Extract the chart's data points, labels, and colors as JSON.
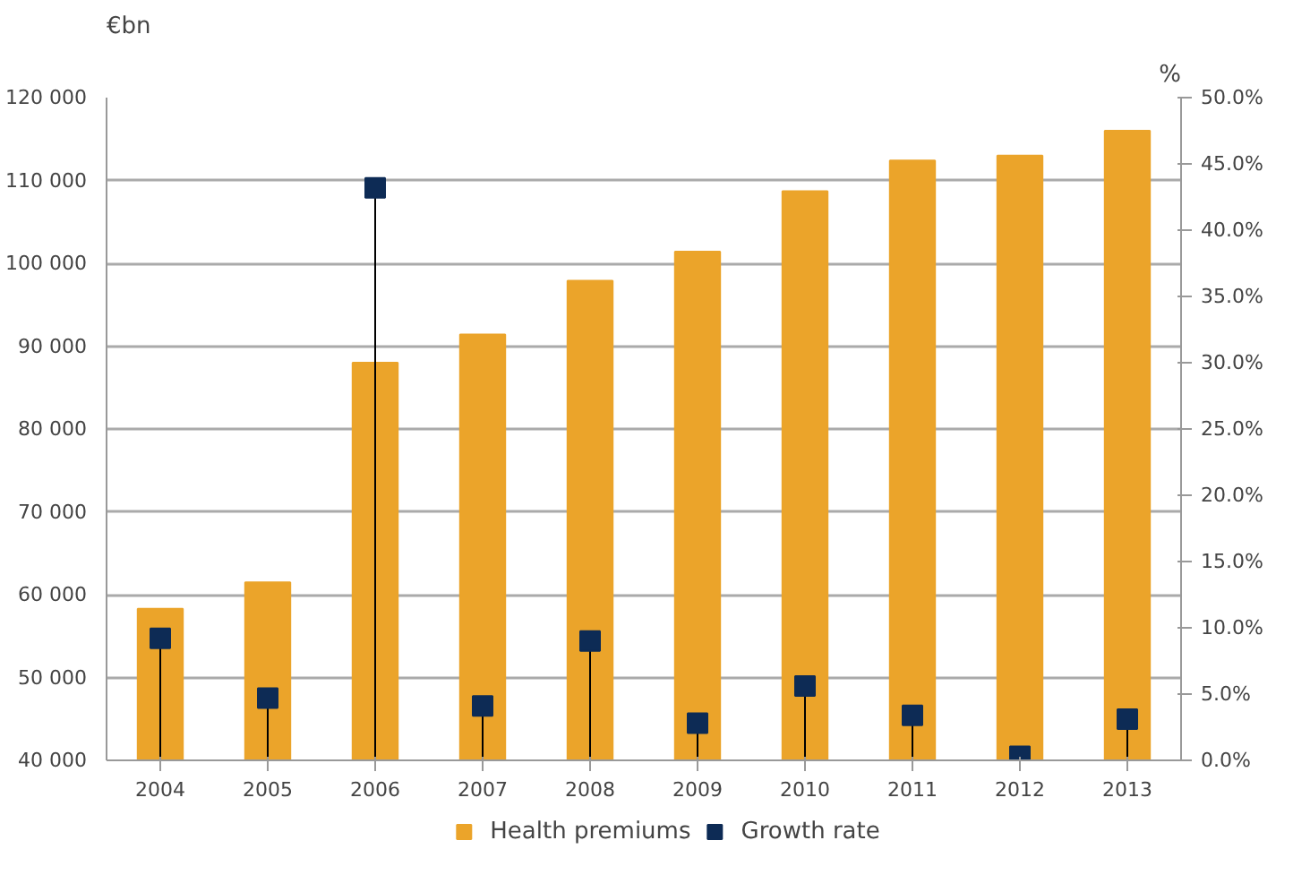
{
  "chart_data": {
    "type": "bar",
    "categories": [
      "2004",
      "2005",
      "2006",
      "2007",
      "2008",
      "2009",
      "2010",
      "2011",
      "2012",
      "2013"
    ],
    "ylabel": "€bn",
    "y2label": "%",
    "series": [
      {
        "name": "Health premiums",
        "color": "#eba42a",
        "values": [
          58300,
          61500,
          88000,
          91400,
          97900,
          101400,
          108700,
          112400,
          113000,
          116000
        ]
      },
      {
        "name": "Growth rate",
        "type": "lollipop",
        "axis": "y2",
        "color": "#0d2b55",
        "values": [
          9.2,
          4.7,
          43.2,
          4.1,
          9.0,
          2.8,
          5.6,
          3.4,
          0.3,
          3.1
        ]
      }
    ],
    "ylim": [
      40000,
      120000
    ],
    "yticks": [
      {
        "value": 40000,
        "label": "40 000"
      },
      {
        "value": 50000,
        "label": "50 000"
      },
      {
        "value": 60000,
        "label": "60 000"
      },
      {
        "value": 70000,
        "label": "70 000"
      },
      {
        "value": 80000,
        "label": "80 000"
      },
      {
        "value": 90000,
        "label": "90 000"
      },
      {
        "value": 100000,
        "label": "100 000"
      },
      {
        "value": 110000,
        "label": "110 000"
      },
      {
        "value": 120000,
        "label": "120 000"
      }
    ],
    "y2lim": [
      0,
      50
    ],
    "y2ticks": [
      {
        "value": 0,
        "label": "0.0%"
      },
      {
        "value": 5,
        "label": "5.0%"
      },
      {
        "value": 10,
        "label": "10.0%"
      },
      {
        "value": 15,
        "label": "15.0%"
      },
      {
        "value": 20,
        "label": "20.0%"
      },
      {
        "value": 25,
        "label": "25.0%"
      },
      {
        "value": 30,
        "label": "30.0%"
      },
      {
        "value": 35,
        "label": "35.0%"
      },
      {
        "value": 40,
        "label": "40.0%"
      },
      {
        "value": 45,
        "label": "45.0%"
      },
      {
        "value": 50,
        "label": "50.0%"
      }
    ],
    "grid": "y",
    "legend": "bottom",
    "marker": "square"
  }
}
